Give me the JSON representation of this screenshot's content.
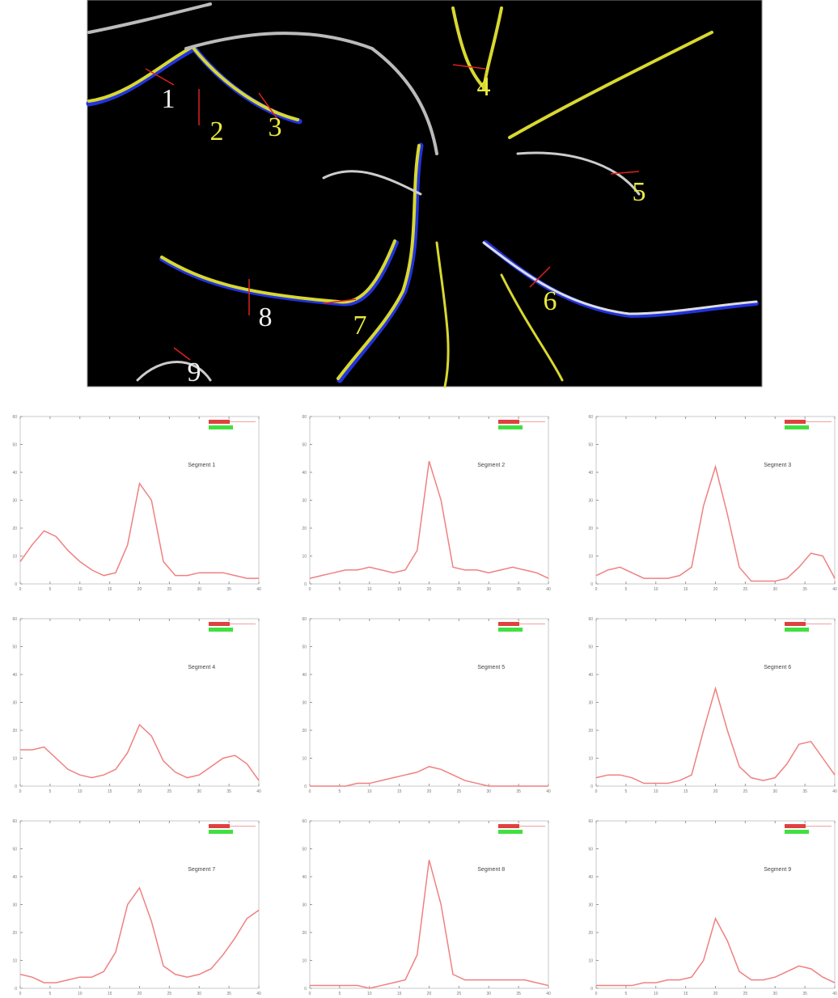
{
  "image_labels": [
    "1",
    "2",
    "3",
    "4",
    "5",
    "6",
    "7",
    "8",
    "9"
  ],
  "chart_data": [
    {
      "type": "line",
      "title": "Segment 1",
      "x": [
        0,
        2,
        4,
        6,
        8,
        10,
        12,
        14,
        16,
        18,
        20,
        22,
        24,
        26,
        28,
        30,
        32,
        34,
        36,
        38,
        40
      ],
      "series": [
        {
          "color": "#f08080",
          "values": [
            8,
            14,
            19,
            17,
            12,
            8,
            5,
            3,
            4,
            14,
            36,
            30,
            8,
            3,
            3,
            4,
            4,
            4,
            3,
            2,
            2
          ]
        }
      ],
      "xlim": [
        0,
        40
      ],
      "ylim": [
        0,
        60
      ],
      "xticks": [
        0,
        5,
        10,
        15,
        20,
        25,
        30,
        35,
        40
      ],
      "yticks": [
        0,
        10,
        20,
        30,
        40,
        50,
        60
      ]
    },
    {
      "type": "line",
      "title": "Segment 2",
      "x": [
        0,
        2,
        4,
        6,
        8,
        10,
        12,
        14,
        16,
        18,
        20,
        22,
        24,
        26,
        28,
        30,
        32,
        34,
        36,
        38,
        40
      ],
      "series": [
        {
          "color": "#f08080",
          "values": [
            2,
            3,
            4,
            5,
            5,
            6,
            5,
            4,
            5,
            12,
            44,
            30,
            6,
            5,
            5,
            4,
            5,
            6,
            5,
            4,
            2
          ]
        }
      ],
      "xlim": [
        0,
        40
      ],
      "ylim": [
        0,
        60
      ],
      "xticks": [
        0,
        5,
        10,
        15,
        20,
        25,
        30,
        35,
        40
      ],
      "yticks": [
        0,
        10,
        20,
        30,
        40,
        50,
        60
      ]
    },
    {
      "type": "line",
      "title": "Segment 3",
      "x": [
        0,
        2,
        4,
        6,
        8,
        10,
        12,
        14,
        16,
        18,
        20,
        22,
        24,
        26,
        28,
        30,
        32,
        34,
        36,
        38,
        40
      ],
      "series": [
        {
          "color": "#f08080",
          "values": [
            3,
            5,
            6,
            4,
            2,
            2,
            2,
            3,
            6,
            28,
            42,
            25,
            6,
            1,
            1,
            1,
            2,
            6,
            11,
            10,
            2
          ]
        }
      ],
      "xlim": [
        0,
        40
      ],
      "ylim": [
        0,
        60
      ],
      "xticks": [
        0,
        5,
        10,
        15,
        20,
        25,
        30,
        35,
        40
      ],
      "yticks": [
        0,
        10,
        20,
        30,
        40,
        50,
        60
      ]
    },
    {
      "type": "line",
      "title": "Segment 4",
      "x": [
        0,
        2,
        4,
        6,
        8,
        10,
        12,
        14,
        16,
        18,
        20,
        22,
        24,
        26,
        28,
        30,
        32,
        34,
        36,
        38,
        40
      ],
      "series": [
        {
          "color": "#f08080",
          "values": [
            13,
            13,
            14,
            10,
            6,
            4,
            3,
            4,
            6,
            12,
            22,
            18,
            9,
            5,
            3,
            4,
            7,
            10,
            11,
            8,
            2
          ]
        }
      ],
      "xlim": [
        0,
        40
      ],
      "ylim": [
        0,
        60
      ],
      "xticks": [
        0,
        5,
        10,
        15,
        20,
        25,
        30,
        35,
        40
      ],
      "yticks": [
        0,
        10,
        20,
        30,
        40,
        50,
        60
      ]
    },
    {
      "type": "line",
      "title": "Segment 5",
      "x": [
        0,
        2,
        4,
        6,
        8,
        10,
        12,
        14,
        16,
        18,
        20,
        22,
        24,
        26,
        28,
        30,
        32,
        34,
        36,
        38,
        40
      ],
      "series": [
        {
          "color": "#f08080",
          "values": [
            0,
            0,
            0,
            0,
            1,
            1,
            2,
            3,
            4,
            5,
            7,
            6,
            4,
            2,
            1,
            0,
            0,
            0,
            0,
            0,
            0
          ]
        }
      ],
      "xlim": [
        0,
        40
      ],
      "ylim": [
        0,
        60
      ],
      "xticks": [
        0,
        5,
        10,
        15,
        20,
        25,
        30,
        35,
        40
      ],
      "yticks": [
        0,
        10,
        20,
        30,
        40,
        50,
        60
      ]
    },
    {
      "type": "line",
      "title": "Segment 6",
      "x": [
        0,
        2,
        4,
        6,
        8,
        10,
        12,
        14,
        16,
        18,
        20,
        22,
        24,
        26,
        28,
        30,
        32,
        34,
        36,
        38,
        40
      ],
      "series": [
        {
          "color": "#f08080",
          "values": [
            3,
            4,
            4,
            3,
            1,
            1,
            1,
            2,
            4,
            20,
            35,
            20,
            7,
            3,
            2,
            3,
            8,
            15,
            16,
            10,
            4
          ]
        }
      ],
      "xlim": [
        0,
        40
      ],
      "ylim": [
        0,
        60
      ],
      "xticks": [
        0,
        5,
        10,
        15,
        20,
        25,
        30,
        35,
        40
      ],
      "yticks": [
        0,
        10,
        20,
        30,
        40,
        50,
        60
      ]
    },
    {
      "type": "line",
      "title": "Segment 7",
      "x": [
        0,
        2,
        4,
        6,
        8,
        10,
        12,
        14,
        16,
        18,
        20,
        22,
        24,
        26,
        28,
        30,
        32,
        34,
        36,
        38,
        40
      ],
      "series": [
        {
          "color": "#f08080",
          "values": [
            5,
            4,
            2,
            2,
            3,
            4,
            4,
            6,
            13,
            30,
            36,
            24,
            8,
            5,
            4,
            5,
            7,
            12,
            18,
            25,
            28
          ]
        }
      ],
      "xlim": [
        0,
        40
      ],
      "ylim": [
        0,
        60
      ],
      "xticks": [
        0,
        5,
        10,
        15,
        20,
        25,
        30,
        35,
        40
      ],
      "yticks": [
        0,
        10,
        20,
        30,
        40,
        50,
        60
      ]
    },
    {
      "type": "line",
      "title": "Segment 8",
      "x": [
        0,
        2,
        4,
        6,
        8,
        10,
        12,
        14,
        16,
        18,
        20,
        22,
        24,
        26,
        28,
        30,
        32,
        34,
        36,
        38,
        40
      ],
      "series": [
        {
          "color": "#f08080",
          "values": [
            1,
            1,
            1,
            1,
            1,
            0,
            1,
            2,
            3,
            12,
            46,
            30,
            5,
            3,
            3,
            3,
            3,
            3,
            3,
            2,
            1
          ]
        }
      ],
      "xlim": [
        0,
        40
      ],
      "ylim": [
        0,
        60
      ],
      "xticks": [
        0,
        5,
        10,
        15,
        20,
        25,
        30,
        35,
        40
      ],
      "yticks": [
        0,
        10,
        20,
        30,
        40,
        50,
        60
      ]
    },
    {
      "type": "line",
      "title": "Segment 9",
      "x": [
        0,
        2,
        4,
        6,
        8,
        10,
        12,
        14,
        16,
        18,
        20,
        22,
        24,
        26,
        28,
        30,
        32,
        34,
        36,
        38,
        40
      ],
      "series": [
        {
          "color": "#f08080",
          "values": [
            1,
            1,
            1,
            1,
            2,
            2,
            3,
            3,
            4,
            10,
            25,
            17,
            6,
            3,
            3,
            4,
            6,
            8,
            7,
            4,
            2
          ]
        }
      ],
      "xlim": [
        0,
        40
      ],
      "ylim": [
        0,
        60
      ],
      "xticks": [
        0,
        5,
        10,
        15,
        20,
        25,
        30,
        35,
        40
      ],
      "yticks": [
        0,
        10,
        20,
        30,
        40,
        50,
        60
      ]
    }
  ]
}
